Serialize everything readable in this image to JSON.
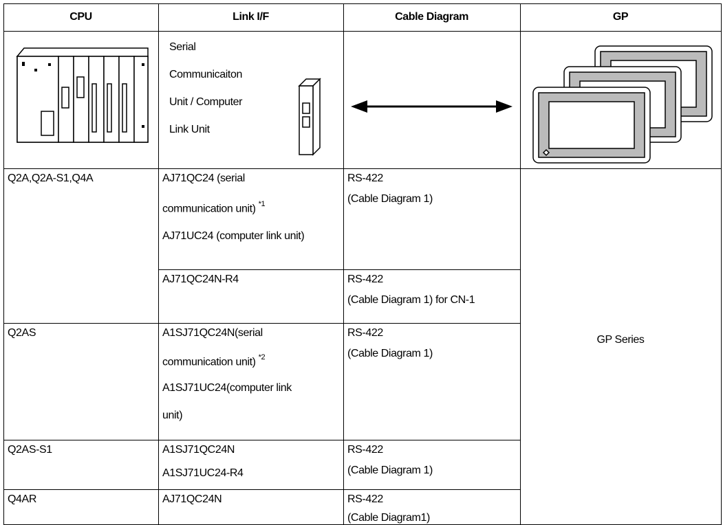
{
  "header": [
    "CPU",
    "Link I/F",
    "Cable Diagram",
    "GP"
  ],
  "image_row": {
    "link_if": [
      "Serial",
      "Communicaiton",
      "Unit / Computer",
      "Link Unit"
    ]
  },
  "rows": [
    {
      "cpu": "Q2A,Q2A-S1,Q4A",
      "link_if": [
        {
          "text": "AJ71QC24 (serial"
        },
        {
          "text": "communication unit)",
          "note": "*1"
        },
        {
          "text": "AJ71UC24 (computer link unit)"
        }
      ],
      "cable": [
        "RS-422",
        "(Cable Diagram 1)"
      ]
    },
    {
      "link_if": [
        {
          "text": "AJ71QC24N-R4"
        }
      ],
      "cable": [
        "RS-422",
        "(Cable Diagram 1) for CN-1"
      ]
    },
    {
      "cpu": "Q2AS",
      "link_if": [
        {
          "text": "A1SJ71QC24N(serial"
        },
        {
          "text": "communication unit)",
          "note": "*2"
        },
        {
          "text": "A1SJ71UC24(computer link"
        },
        {
          "text": "unit)"
        }
      ],
      "cable": [
        "RS-422",
        "(Cable Diagram 1)"
      ]
    },
    {
      "cpu": "Q2AS-S1",
      "link_if": [
        {
          "text": "A1SJ71QC24N"
        },
        {
          "text": "A1SJ71UC24-R4"
        }
      ],
      "cable": [
        "RS-422",
        "(Cable Diagram 1)"
      ]
    },
    {
      "cpu": "Q4AR",
      "link_if": [
        {
          "text": "AJ71QC24N"
        }
      ],
      "cable": [
        "RS-422",
        "(Cable Diagram1)"
      ]
    }
  ],
  "gp": "GP Series"
}
